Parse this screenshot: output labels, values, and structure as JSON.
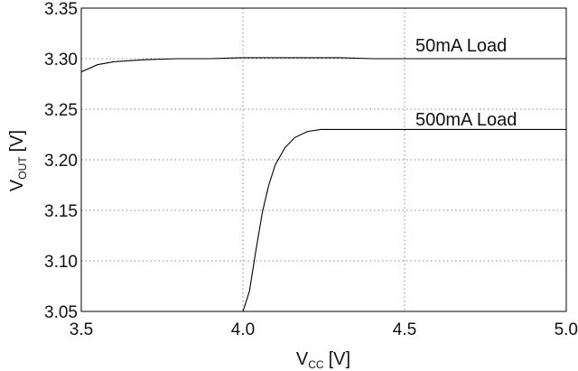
{
  "chart_data": {
    "type": "line",
    "title": "",
    "xlabel_main": "V",
    "xlabel_sub": "CC",
    "xlabel_unit": "[V]",
    "ylabel_main": "V",
    "ylabel_sub": "OUT",
    "ylabel_unit": "[V]",
    "xlim": [
      3.5,
      5.0
    ],
    "ylim": [
      3.05,
      3.35
    ],
    "x_ticks": [
      3.5,
      4.0,
      4.5,
      5.0
    ],
    "x_tick_labels": [
      "3.5",
      "4.0",
      "4.5",
      "5.0"
    ],
    "y_ticks": [
      3.05,
      3.1,
      3.15,
      3.2,
      3.25,
      3.3,
      3.35
    ],
    "y_tick_labels": [
      "3.05",
      "3.10",
      "3.15",
      "3.20",
      "3.25",
      "3.30",
      "3.35"
    ],
    "grid": true,
    "series": [
      {
        "name": "50mA Load",
        "x": [
          3.5,
          3.55,
          3.6,
          3.7,
          3.8,
          3.9,
          4.0,
          4.1,
          4.2,
          4.3,
          4.4,
          4.5,
          4.6,
          4.7,
          4.8,
          4.9,
          5.0
        ],
        "y": [
          3.287,
          3.294,
          3.297,
          3.299,
          3.3,
          3.3,
          3.301,
          3.301,
          3.301,
          3.301,
          3.3,
          3.3,
          3.3,
          3.3,
          3.3,
          3.3,
          3.3
        ]
      },
      {
        "name": "500mA Load",
        "x": [
          4.0,
          4.02,
          4.04,
          4.06,
          4.08,
          4.1,
          4.13,
          4.16,
          4.2,
          4.24,
          4.4,
          4.6,
          4.8,
          5.0
        ],
        "y": [
          3.05,
          3.07,
          3.11,
          3.148,
          3.175,
          3.195,
          3.212,
          3.222,
          3.228,
          3.23,
          3.23,
          3.23,
          3.23,
          3.23
        ]
      }
    ]
  }
}
